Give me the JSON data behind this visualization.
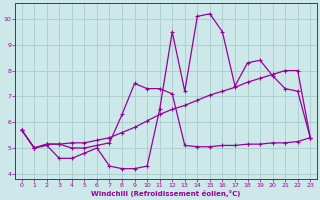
{
  "xlabel": "Windchill (Refroidissement éolien,°C)",
  "bg_color": "#cce8e8",
  "grid_color": "#aacccc",
  "line_color": "#990099",
  "xlim": [
    -0.5,
    23.5
  ],
  "ylim": [
    3.8,
    10.6
  ],
  "yticks": [
    4,
    5,
    6,
    7,
    8,
    9,
    10
  ],
  "xticks": [
    0,
    1,
    2,
    3,
    4,
    5,
    6,
    7,
    8,
    9,
    10,
    11,
    12,
    13,
    14,
    15,
    16,
    17,
    18,
    19,
    20,
    21,
    22,
    23
  ],
  "line1_x": [
    0,
    1,
    2,
    3,
    4,
    5,
    6,
    7,
    8,
    9,
    10,
    11,
    12,
    13,
    14,
    15,
    16,
    17,
    18,
    19,
    20,
    21,
    22,
    23
  ],
  "line1_y": [
    5.7,
    5.0,
    5.1,
    4.6,
    4.6,
    4.8,
    5.0,
    4.3,
    4.2,
    4.2,
    4.3,
    6.5,
    9.5,
    7.2,
    10.1,
    10.2,
    9.5,
    7.4,
    8.3,
    8.4,
    7.8,
    7.3,
    7.2,
    5.4
  ],
  "line2_x": [
    0,
    1,
    2,
    3,
    4,
    5,
    6,
    7,
    8,
    9,
    10,
    11,
    12,
    13,
    14,
    15,
    16,
    17,
    18,
    19,
    20,
    21,
    22,
    23
  ],
  "line2_y": [
    5.7,
    5.0,
    5.15,
    5.15,
    5.2,
    5.2,
    5.3,
    5.4,
    5.6,
    5.8,
    6.05,
    6.3,
    6.5,
    6.65,
    6.85,
    7.05,
    7.2,
    7.35,
    7.55,
    7.7,
    7.85,
    8.0,
    8.0,
    5.4
  ],
  "line3_x": [
    0,
    1,
    2,
    3,
    4,
    5,
    6,
    7,
    8,
    9,
    10,
    11,
    12,
    13,
    14,
    15,
    16,
    17,
    18,
    19,
    20,
    21,
    22,
    23
  ],
  "line3_y": [
    5.7,
    5.0,
    5.15,
    5.15,
    5.0,
    5.0,
    5.1,
    5.2,
    6.3,
    7.5,
    7.3,
    7.3,
    7.1,
    5.1,
    5.05,
    5.05,
    5.1,
    5.1,
    5.15,
    5.15,
    5.2,
    5.2,
    5.25,
    5.4
  ]
}
